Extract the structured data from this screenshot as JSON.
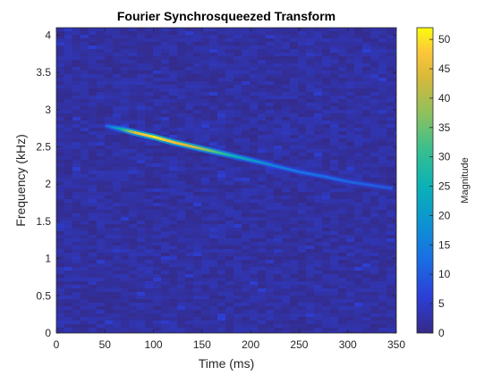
{
  "chart_data": {
    "type": "heatmap",
    "title": "Fourier Synchrosqueezed Transform",
    "xlabel": "Time (ms)",
    "ylabel": "Frequency (kHz)",
    "xlim": [
      0,
      350
    ],
    "ylim": [
      0,
      4.1
    ],
    "xticks": [
      "0",
      "50",
      "100",
      "150",
      "200",
      "250",
      "300",
      "350"
    ],
    "yticks": [
      "0",
      "0.5",
      "1",
      "1.5",
      "2",
      "2.5",
      "3",
      "3.5",
      "4"
    ],
    "colorbar": {
      "label": "Magnitude",
      "range": [
        0,
        52
      ],
      "ticks": [
        "0",
        "5",
        "10",
        "15",
        "20",
        "25",
        "30",
        "35",
        "40",
        "45",
        "50"
      ]
    },
    "colormap": "parula",
    "background_magnitude": 2,
    "ridge": {
      "description_points": [
        {
          "t": 50,
          "f_khz": 2.78,
          "mag": 10
        },
        {
          "t": 65,
          "f_khz": 2.74,
          "mag": 25
        },
        {
          "t": 80,
          "f_khz": 2.69,
          "mag": 45
        },
        {
          "t": 100,
          "f_khz": 2.63,
          "mag": 50
        },
        {
          "t": 120,
          "f_khz": 2.56,
          "mag": 46
        },
        {
          "t": 140,
          "f_khz": 2.5,
          "mag": 42
        },
        {
          "t": 160,
          "f_khz": 2.44,
          "mag": 34
        },
        {
          "t": 180,
          "f_khz": 2.38,
          "mag": 25
        },
        {
          "t": 200,
          "f_khz": 2.32,
          "mag": 20
        },
        {
          "t": 225,
          "f_khz": 2.24,
          "mag": 15
        },
        {
          "t": 250,
          "f_khz": 2.16,
          "mag": 13
        },
        {
          "t": 275,
          "f_khz": 2.1,
          "mag": 12
        },
        {
          "t": 300,
          "f_khz": 2.03,
          "mag": 11
        },
        {
          "t": 325,
          "f_khz": 1.98,
          "mag": 10
        },
        {
          "t": 345,
          "f_khz": 1.94,
          "mag": 9
        }
      ]
    }
  }
}
